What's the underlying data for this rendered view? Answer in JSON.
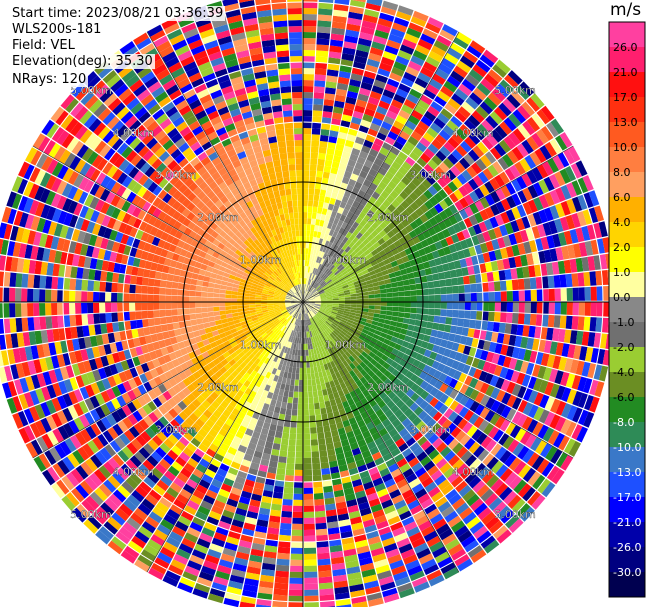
{
  "info": {
    "start_time": "Start time: 2023/08/21 03:36:39",
    "site": "WLS200s-181",
    "field": "Field: VEL",
    "elevation": "Elevation(deg): 35.30",
    "nrays": "NRays: 120"
  },
  "colorbar": {
    "unit": "m/s",
    "ticks": [
      "26.0",
      "21.0",
      "17.0",
      "13.0",
      "10.0",
      "8.0",
      "6.0",
      "4.0",
      "2.0",
      "1.0",
      "0.0",
      "-1.0",
      "-2.0",
      "-4.0",
      "-6.0",
      "-8.0",
      "-10.0",
      "-13.0",
      "-17.0",
      "-21.0",
      "-26.0",
      "-30.0"
    ],
    "colors": [
      "#ff40a0",
      "#ff1f6e",
      "#ff1010",
      "#ff3010",
      "#ff5a20",
      "#ff7e40",
      "#ff9f60",
      "#ffb000",
      "#ffd400",
      "#ffff00",
      "#ffffa0",
      "#888888",
      "#707070",
      "#9acd32",
      "#6b8e23",
      "#228b22",
      "#2e8b57",
      "#3a78c8",
      "#1e50ff",
      "#0000ff",
      "#0000aa",
      "#000080",
      "#000050"
    ]
  },
  "chart_data": {
    "type": "heatmap",
    "projection": "polar PPI",
    "field": "VEL",
    "units": "m/s",
    "nrays": 120,
    "range_rings_km": [
      1.0,
      2.0,
      3.0,
      4.0,
      5.0
    ],
    "range_ring_labels": [
      "1.00km",
      "2.00km",
      "3.00km",
      "4.00km",
      "5.00km"
    ],
    "max_range_km": 5.2,
    "value_range": [
      -30,
      30
    ],
    "description_pattern": {
      "inner_negative_sector_azimuth_deg": 110,
      "inner_positive_sector_azimuth_deg": 290,
      "near_zero_band": true,
      "outer_noise_start_km": 2.6
    }
  }
}
